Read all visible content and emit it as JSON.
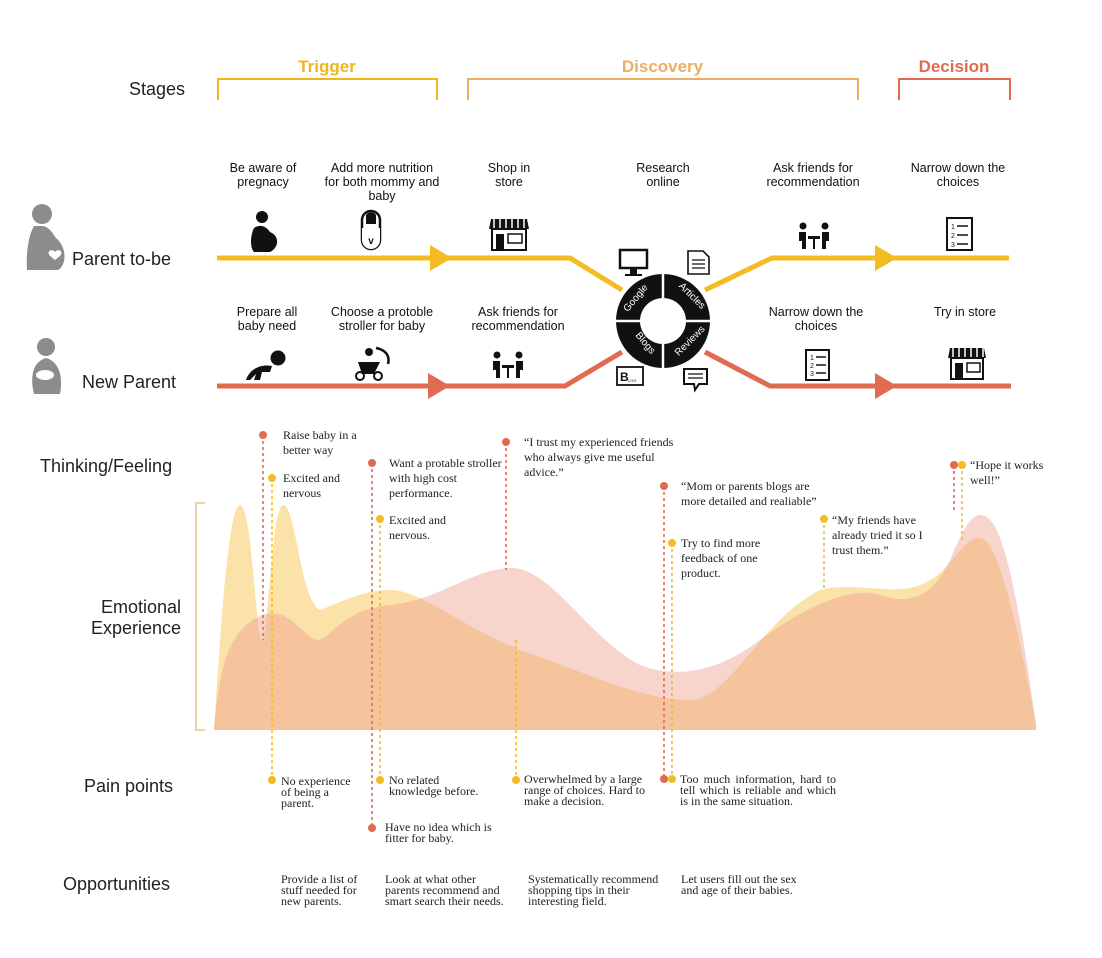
{
  "colors": {
    "trigger": "#f1b51c",
    "discovery": "#ecae62",
    "decision": "#e06b50",
    "parent_line": "#f4bb23",
    "new_parent_line": "#e06b50",
    "persona_gray": "#8c8c8c"
  },
  "row_labels": {
    "stages": "Stages",
    "parent_to_be": "Parent to-be",
    "new_parent": "New Parent",
    "thinking": "Thinking/Feeling",
    "emotional_1": "Emotional",
    "emotional_2": "Experience",
    "pain_points": "Pain points",
    "opportunities": "Opportunities"
  },
  "stages": [
    {
      "name": "Trigger"
    },
    {
      "name": "Discovery"
    },
    {
      "name": "Decision"
    }
  ],
  "parent_steps": [
    {
      "label": "Be aware of pregnacy",
      "icon": "pregnant-icon"
    },
    {
      "label": "Add more nutrition for both mommy and baby",
      "icon": "vitamin-pill-icon"
    },
    {
      "label": "Shop in store",
      "icon": "store-icon"
    },
    {
      "label": "Research online",
      "icon": "computer-icon"
    },
    {
      "label": "Ask friends for recommendation",
      "icon": "friends-talking-icon"
    },
    {
      "label": "Narrow down the choices",
      "icon": "checklist-icon"
    }
  ],
  "new_parent_steps": [
    {
      "label": "Prepare all baby need",
      "icon": "crawling-baby-icon"
    },
    {
      "label": "Choose a protoble stroller for baby",
      "icon": "stroller-icon"
    },
    {
      "label": "Ask friends for recommendation",
      "icon": "friends-talking-icon"
    },
    {
      "label": "Narrow down the choices",
      "icon": "checklist-icon"
    },
    {
      "label": "Try in store",
      "icon": "store-icon"
    }
  ],
  "research_wheel": [
    "Google",
    "Articles",
    "Blogs",
    "Reviews"
  ],
  "blog_icon_text": "B",
  "blog_icon_sub": "LOG",
  "thoughts": [
    {
      "text": "Raise baby in a better way",
      "persona": "new"
    },
    {
      "text": "Excited and nervous",
      "persona": "parent"
    },
    {
      "text": "Want a protable stroller with high cost performance.",
      "persona": "new"
    },
    {
      "text": "Excited and nervous.",
      "persona": "parent"
    },
    {
      "text": "“I trust my experienced friends who always give me useful advice.”",
      "persona": "new"
    },
    {
      "text": "“Mom or parents blogs are more detailed and realiable”",
      "persona": "new"
    },
    {
      "text": "Try to find more feedback of one product.",
      "persona": "parent"
    },
    {
      "text": "“My friends have already tried it so I trust them.”",
      "persona": "parent"
    },
    {
      "text": "“Hope it works well!”",
      "persona": "parent"
    }
  ],
  "pain_points": [
    "No experience of being a parent.",
    "No related knowledge before.",
    "Have no idea which is fitter for baby.",
    "Overwhelmed by a large range of choices. Hard to make a decision.",
    "Too much information, hard to tell which is reliable and which is in the same situation."
  ],
  "opportunities": [
    "Provide a list of stuff needed for new parents.",
    "Look at what other parents recommend and smart search their needs.",
    "Systematically recommend shopping tips in their interesting field.",
    "Let users fill out the sex and age of their babies."
  ]
}
